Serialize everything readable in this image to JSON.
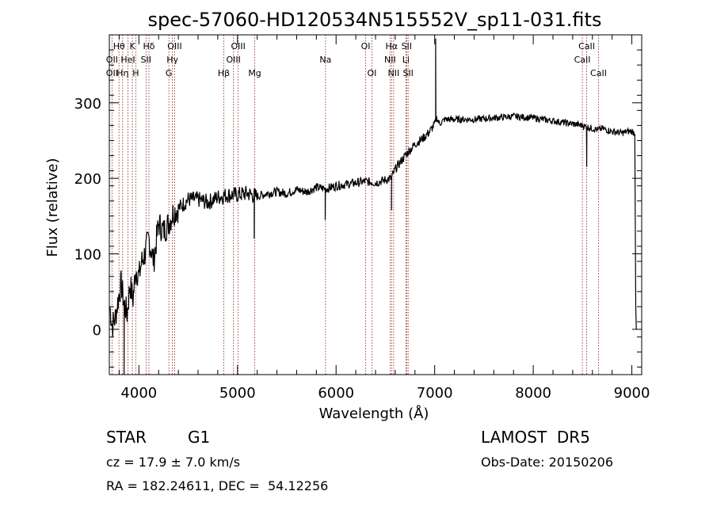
{
  "chart_data": {
    "type": "line",
    "title": "spec-57060-HD120534N515552V_sp11-031.fits",
    "xlabel": "Wavelength (Å)",
    "ylabel": "Flux (relative)",
    "xlim": [
      3700,
      9100
    ],
    "ylim": [
      -60,
      390
    ],
    "x_ticks": [
      4000,
      5000,
      6000,
      7000,
      8000,
      9000
    ],
    "y_ticks": [
      0,
      100,
      200,
      300
    ],
    "grid": false,
    "line_color": "#000000",
    "marker_color": "#8b1a1a",
    "spectrum": {
      "name": "",
      "x": [
        3705,
        3730,
        3760,
        3790,
        3820,
        3850,
        3880,
        3910,
        3940,
        3970,
        4000,
        4030,
        4060,
        4100,
        4150,
        4200,
        4250,
        4300,
        4350,
        4400,
        4500,
        4600,
        4700,
        4800,
        4900,
        5000,
        5100,
        5200,
        5300,
        5400,
        5500,
        5600,
        5700,
        5800,
        5900,
        6000,
        6100,
        6200,
        6300,
        6400,
        6500,
        6560,
        6600,
        6700,
        6800,
        6900,
        6950,
        7000,
        7020,
        7050,
        7100,
        7200,
        7400,
        7600,
        7800,
        8000,
        8200,
        8400,
        8500,
        8540,
        8600,
        8660,
        8700,
        8800,
        8900,
        8950,
        9000,
        9030,
        9040,
        9045
      ],
      "y": [
        30,
        5,
        15,
        40,
        60,
        35,
        20,
        60,
        40,
        80,
        70,
        90,
        100,
        120,
        90,
        140,
        130,
        140,
        155,
        160,
        172,
        172,
        168,
        175,
        178,
        178,
        180,
        176,
        180,
        182,
        180,
        185,
        182,
        188,
        186,
        190,
        192,
        194,
        196,
        194,
        198,
        200,
        212,
        230,
        245,
        255,
        262,
        272,
        280,
        272,
        278,
        278,
        278,
        280,
        282,
        280,
        276,
        272,
        270,
        268,
        266,
        264,
        266,
        262,
        260,
        262,
        262,
        260,
        30,
        0
      ]
    },
    "features": [
      {
        "x": 7010,
        "y": 385,
        "note": "emission spike"
      },
      {
        "x": 3850,
        "y": -60,
        "note": "absorption"
      },
      {
        "x": 5890,
        "y": 145,
        "note": "Na absorption"
      },
      {
        "x": 6563,
        "y": 158,
        "note": "Halpha absorption"
      },
      {
        "x": 5170,
        "y": 120,
        "note": "Mg absorption"
      },
      {
        "x": 8542,
        "y": 215,
        "note": "CaII absorption"
      }
    ],
    "lines": [
      {
        "label": "Hθ",
        "x": 3798,
        "row": 0
      },
      {
        "label": "K",
        "x": 3934,
        "row": 0
      },
      {
        "label": "Hδ",
        "x": 4102,
        "row": 0
      },
      {
        "label": "OIII",
        "x": 4363,
        "row": 0
      },
      {
        "label": "OIII",
        "x": 5007,
        "row": 0
      },
      {
        "label": "OI",
        "x": 6300,
        "row": 0
      },
      {
        "label": "Hα",
        "x": 6563,
        "row": 0
      },
      {
        "label": "SII",
        "x": 6716,
        "row": 0
      },
      {
        "label": "CaII",
        "x": 8542,
        "row": 0
      },
      {
        "label": "OII",
        "x": 3727,
        "row": 1
      },
      {
        "label": "HeI",
        "x": 3889,
        "row": 1
      },
      {
        "label": "SII",
        "x": 4072,
        "row": 1
      },
      {
        "label": "Hγ",
        "x": 4340,
        "row": 1
      },
      {
        "label": "OIII",
        "x": 4959,
        "row": 1
      },
      {
        "label": "Na",
        "x": 5893,
        "row": 1
      },
      {
        "label": "NII",
        "x": 6548,
        "row": 1
      },
      {
        "label": "Li",
        "x": 6708,
        "row": 1
      },
      {
        "label": "CaII",
        "x": 8498,
        "row": 1
      },
      {
        "label": "OII",
        "x": 3727,
        "row": 2
      },
      {
        "label": "Hη",
        "x": 3835,
        "row": 2
      },
      {
        "label": "H",
        "x": 3968,
        "row": 2
      },
      {
        "label": "G",
        "x": 4304,
        "row": 2
      },
      {
        "label": "Hβ",
        "x": 4861,
        "row": 2
      },
      {
        "label": "Mg",
        "x": 5175,
        "row": 2
      },
      {
        "label": "OI",
        "x": 6363,
        "row": 2
      },
      {
        "label": "NII",
        "x": 6584,
        "row": 2
      },
      {
        "label": "SII",
        "x": 6731,
        "row": 2
      },
      {
        "label": "CaII",
        "x": 8662,
        "row": 2
      }
    ]
  },
  "info": {
    "object_type": "STAR",
    "subclass": "G1",
    "survey": "LAMOST  DR5",
    "cz": "cz = 17.9 ± 7.0 km/s",
    "obs_date": "Obs-Date: 20150206",
    "coords": "RA = 182.24611, DEC =  54.12256"
  }
}
